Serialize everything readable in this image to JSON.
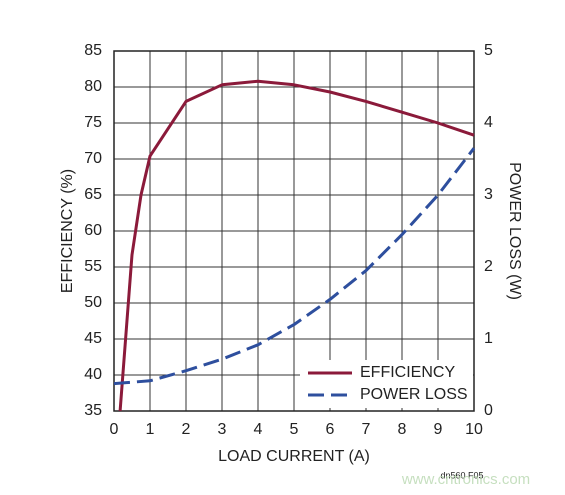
{
  "chart_data": {
    "type": "line",
    "xlabel": "LOAD CURRENT (A)",
    "ylabel": "EFFICIENCY (%)",
    "y2label": "POWER LOSS (W)",
    "xlim": [
      0,
      10
    ],
    "xticks": [
      0,
      1,
      2,
      3,
      4,
      5,
      6,
      7,
      8,
      9,
      10
    ],
    "ylim": [
      35,
      85
    ],
    "yticks": [
      35,
      40,
      45,
      50,
      55,
      60,
      65,
      70,
      75,
      80,
      85
    ],
    "y2lim": [
      0,
      5
    ],
    "y2ticks": [
      0,
      1,
      2,
      3,
      4,
      5
    ],
    "grid": true,
    "legend": "lower right",
    "series": [
      {
        "name": "EFFICIENCY",
        "color": "#8b1a3a",
        "dash": false,
        "x": [
          0.17,
          0.5,
          0.75,
          1,
          2,
          3,
          4,
          5,
          6,
          7,
          8,
          9,
          10
        ],
        "values": [
          35,
          56.7,
          65,
          70.4,
          78,
          80.3,
          80.8,
          80.3,
          79.3,
          78,
          76.5,
          75,
          73.3
        ]
      },
      {
        "name": "POWER LOSS",
        "color": "#2e4f9e",
        "dash": true,
        "axis": "y2",
        "x": [
          0,
          1,
          2,
          3,
          4,
          5,
          6,
          7,
          8,
          9,
          10
        ],
        "values": [
          0.38,
          0.42,
          0.56,
          0.72,
          0.92,
          1.2,
          1.55,
          1.95,
          2.45,
          3.0,
          3.65
        ]
      }
    ],
    "annotations": [
      "dn560 F05",
      "www.cntronics.com"
    ]
  }
}
